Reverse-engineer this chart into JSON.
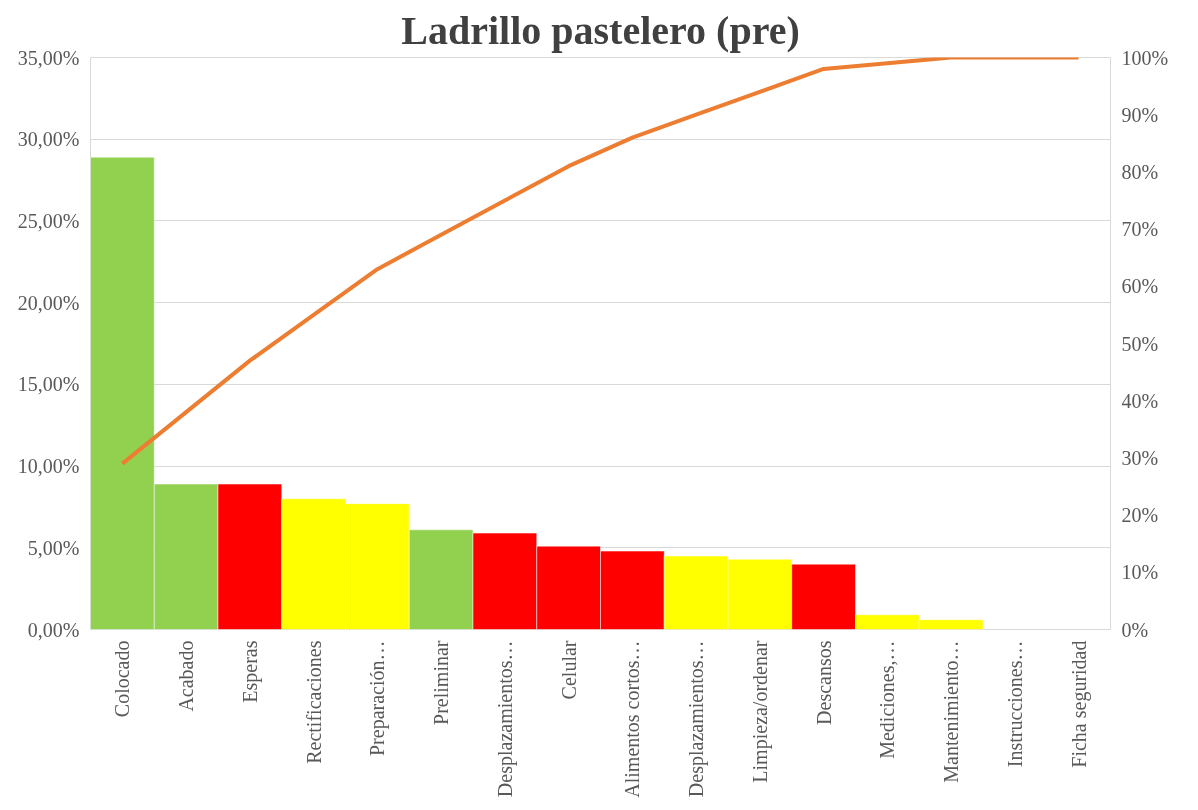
{
  "chart_data": {
    "type": "bar",
    "title": "Ladrillo pastelero (pre)",
    "categories": [
      "Colocado",
      "Acabado",
      "Esperas",
      "Rectificaciones",
      "Preparación…",
      "Preliminar",
      "Desplazamientos…",
      "Celular",
      "Alimentos cortos…",
      "Desplazamientos…",
      "Limpieza/ordenar",
      "Descansos",
      "Mediciones,…",
      "Mantenimiento…",
      "Instrucciones…",
      "Ficha seguridad"
    ],
    "series": [
      {
        "colors": [
          "#92d050",
          "#92d050",
          "#ff0000",
          "#ffff00",
          "#ffff00",
          "#92d050",
          "#ff0000",
          "#ff0000",
          "#ff0000",
          "#ffff00",
          "#ffff00",
          "#ff0000",
          "#ffff00",
          "#ffff00",
          null,
          null
        ],
        "values": [
          28.9,
          8.9,
          8.9,
          8.0,
          7.7,
          6.1,
          5.9,
          5.1,
          4.8,
          4.5,
          4.3,
          4.0,
          0.9,
          0.6,
          0.0,
          0.0
        ]
      },
      {
        "type": "line",
        "axis": "y2",
        "color": "#ed7d31",
        "values": [
          29,
          38,
          47,
          55,
          63,
          69,
          75,
          81,
          86,
          90,
          94,
          98,
          99,
          100,
          100,
          100
        ]
      }
    ],
    "ylim": [
      0,
      35
    ],
    "yticks": [
      {
        "value": 0,
        "label": "0,00%"
      },
      {
        "value": 5,
        "label": "5,00%"
      },
      {
        "value": 10,
        "label": "10,00%"
      },
      {
        "value": 15,
        "label": "15,00%"
      },
      {
        "value": 20,
        "label": "20,00%"
      },
      {
        "value": 25,
        "label": "25,00%"
      },
      {
        "value": 30,
        "label": "30,00%"
      },
      {
        "value": 35,
        "label": "35,00%"
      }
    ],
    "y2lim": [
      0,
      100
    ],
    "y2ticks": [
      {
        "value": 0,
        "label": "0%"
      },
      {
        "value": 10,
        "label": "10%"
      },
      {
        "value": 20,
        "label": "20%"
      },
      {
        "value": 30,
        "label": "30%"
      },
      {
        "value": 40,
        "label": "40%"
      },
      {
        "value": 50,
        "label": "50%"
      },
      {
        "value": 60,
        "label": "60%"
      },
      {
        "value": 70,
        "label": "70%"
      },
      {
        "value": 80,
        "label": "80%"
      },
      {
        "value": 90,
        "label": "90%"
      },
      {
        "value": 100,
        "label": "100%"
      }
    ],
    "grid": "y",
    "marker": "none",
    "line_style": "solid"
  }
}
